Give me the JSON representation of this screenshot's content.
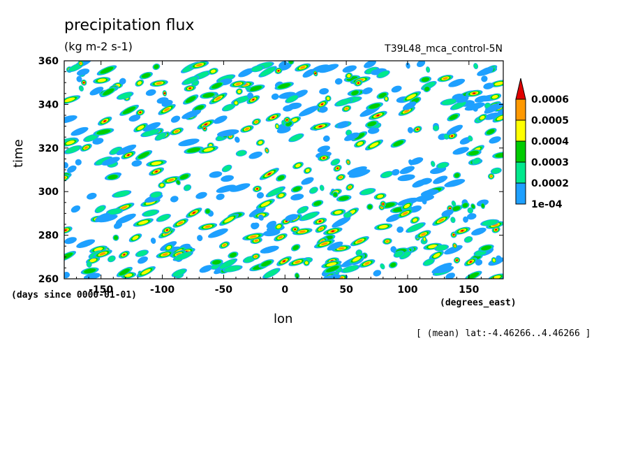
{
  "chart_data": {
    "type": "heatmap",
    "title": "precipitation flux",
    "subtitle": "(kg m-2 s-1)",
    "run_label": "T39L48_mca_control-5N",
    "xlabel": "lon",
    "ylabel": "time",
    "x_units": "(degrees_east)",
    "y_units": "(days since 0000-01-01)",
    "note": "[ (mean) lat:-4.46266..4.46266 ]",
    "xlim": [
      -180,
      178
    ],
    "ylim": [
      260,
      360
    ],
    "x_ticks": [
      -150,
      -100,
      -50,
      0,
      50,
      100,
      150
    ],
    "y_ticks": [
      260,
      280,
      300,
      320,
      340,
      360
    ],
    "x_tick_labels": [
      "-150",
      "-100",
      "-50",
      "0",
      "50",
      "100",
      "150"
    ],
    "y_tick_labels": [
      "260",
      "280",
      "300",
      "320",
      "340",
      "360"
    ],
    "colorbar": {
      "levels": [
        "1e-04",
        "0.0002",
        "0.0003",
        "0.0004",
        "0.0005",
        "0.0006"
      ],
      "colors": [
        "#1ea0ff",
        "#00e88c",
        "#00cc00",
        "#ffff00",
        "#ff9900",
        "#e00000"
      ]
    },
    "grid": false
  }
}
